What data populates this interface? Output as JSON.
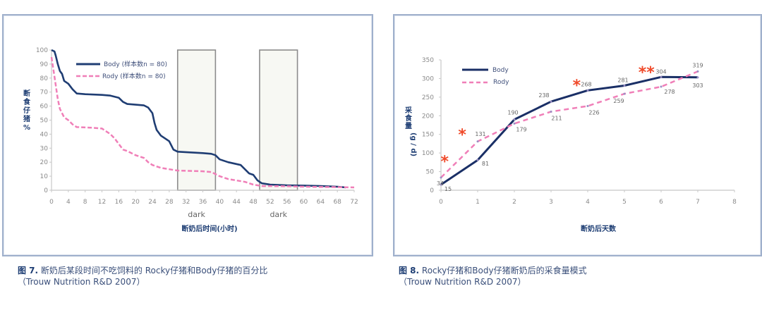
{
  "chart_data": [
    {
      "type": "line",
      "title": "",
      "xlabel": "断奶后时间(小时)",
      "ylabel": "断食仔猪%",
      "xlim": [
        0,
        72
      ],
      "ylim": [
        0,
        100
      ],
      "x_ticks": [
        "0",
        "4",
        "8",
        "12",
        "16",
        "20",
        "24",
        "28",
        "32",
        "36",
        "40",
        "44",
        "48",
        "52",
        "56",
        "60",
        "64",
        "68",
        "72"
      ],
      "y_ticks": [
        "0",
        "10",
        "20",
        "30",
        "40",
        "50",
        "60",
        "70",
        "80",
        "90",
        "100"
      ],
      "legend_position": "top-center",
      "shaded_regions": [
        {
          "label": "dark",
          "x_start": 30,
          "x_end": 39
        },
        {
          "label": "dark",
          "x_start": 49.5,
          "x_end": 58.5
        }
      ],
      "series": [
        {
          "name": "Body (样本数n = 80)",
          "style": "solid",
          "color": "#1f3d73",
          "points": [
            [
              0,
              100
            ],
            [
              0.7,
              99
            ],
            [
              1,
              96
            ],
            [
              1.5,
              90
            ],
            [
              2,
              85
            ],
            [
              2.5,
              83
            ],
            [
              3,
              78
            ],
            [
              4,
              76
            ],
            [
              5,
              72
            ],
            [
              6,
              69
            ],
            [
              8,
              68.5
            ],
            [
              12,
              68
            ],
            [
              14,
              67.5
            ],
            [
              16,
              66
            ],
            [
              17,
              63
            ],
            [
              18,
              61.5
            ],
            [
              22,
              60.5
            ],
            [
              23,
              59
            ],
            [
              24,
              55
            ],
            [
              24.5,
              48
            ],
            [
              25,
              43
            ],
            [
              26,
              39
            ],
            [
              27,
              37
            ],
            [
              28,
              35
            ],
            [
              29,
              29
            ],
            [
              30,
              27.5
            ],
            [
              36,
              26.5
            ],
            [
              38,
              26
            ],
            [
              39,
              25
            ],
            [
              40,
              22
            ],
            [
              42,
              20
            ],
            [
              45,
              18
            ],
            [
              46,
              15
            ],
            [
              47,
              12
            ],
            [
              48,
              11
            ],
            [
              49,
              7
            ],
            [
              50,
              5
            ],
            [
              52,
              4
            ],
            [
              56,
              3.5
            ],
            [
              60,
              3.3
            ],
            [
              64,
              3
            ],
            [
              68,
              2.5
            ],
            [
              70,
              2
            ]
          ]
        },
        {
          "name": "Rody (样本数n = 80)",
          "style": "dashed",
          "color": "#f07fb8",
          "points": [
            [
              0,
              95
            ],
            [
              0.5,
              85
            ],
            [
              1,
              75
            ],
            [
              1.5,
              65
            ],
            [
              2,
              58
            ],
            [
              3,
              52
            ],
            [
              4,
              50
            ],
            [
              5,
              47
            ],
            [
              6,
              45
            ],
            [
              10,
              44.5
            ],
            [
              12,
              44
            ],
            [
              13,
              42
            ],
            [
              14,
              40
            ],
            [
              15,
              37
            ],
            [
              16,
              33
            ],
            [
              17,
              29
            ],
            [
              18,
              28
            ],
            [
              20,
              25
            ],
            [
              22,
              23
            ],
            [
              23,
              20
            ],
            [
              24,
              18
            ],
            [
              26,
              16
            ],
            [
              28,
              15
            ],
            [
              30,
              14
            ],
            [
              36,
              13.5
            ],
            [
              38,
              13
            ],
            [
              40,
              10
            ],
            [
              42,
              8
            ],
            [
              44,
              7
            ],
            [
              46,
              6
            ],
            [
              48,
              4
            ],
            [
              50,
              3
            ],
            [
              56,
              2.8
            ],
            [
              60,
              2.5
            ],
            [
              64,
              2.3
            ],
            [
              68,
              2.2
            ],
            [
              72,
              2
            ]
          ]
        }
      ]
    },
    {
      "type": "line",
      "title": "",
      "xlabel": "断奶后天数",
      "ylabel": "采食量(g / d)",
      "xlim": [
        0,
        8
      ],
      "ylim": [
        0,
        350
      ],
      "x_ticks": [
        "0",
        "1",
        "2",
        "3",
        "4",
        "5",
        "6",
        "7",
        "8"
      ],
      "y_ticks": [
        "0",
        "50",
        "100",
        "150",
        "200",
        "250",
        "300",
        "350"
      ],
      "legend_position": "top-left",
      "series": [
        {
          "name": "Body",
          "style": "solid",
          "color": "#1a2f66",
          "x": [
            0,
            1,
            2,
            3,
            4,
            5,
            6,
            7
          ],
          "values": [
            15,
            81,
            190,
            238,
            268,
            281,
            304,
            303
          ]
        },
        {
          "name": "Rody",
          "style": "dashed",
          "color": "#f07fb8",
          "x": [
            0,
            1,
            2,
            3,
            4,
            5,
            6,
            7
          ],
          "values": [
            34,
            131,
            179,
            211,
            226,
            259,
            278,
            319
          ]
        }
      ],
      "significance_markers": [
        {
          "symbol": "*",
          "x": 0.1,
          "y": 80
        },
        {
          "symbol": "*",
          "x": 0.58,
          "y": 152
        },
        {
          "symbol": "*",
          "x": 3.7,
          "y": 285
        },
        {
          "symbol": "**",
          "x": 5.6,
          "y": 320
        }
      ],
      "annotation_color": "#f04a2a"
    }
  ],
  "captions": [
    {
      "fig": "图 7.",
      "text": " 断奶后某段时间不吃饲料的 Rocky仔猪和Body仔猪的百分比",
      "source": "（Trouw Nutrition R&D 2007）"
    },
    {
      "fig": "图 8.",
      "text": " Rocky仔猪和Body仔猪断奶后的采食量模式",
      "source": "（Trouw Nutrition R&D 2007）"
    }
  ]
}
